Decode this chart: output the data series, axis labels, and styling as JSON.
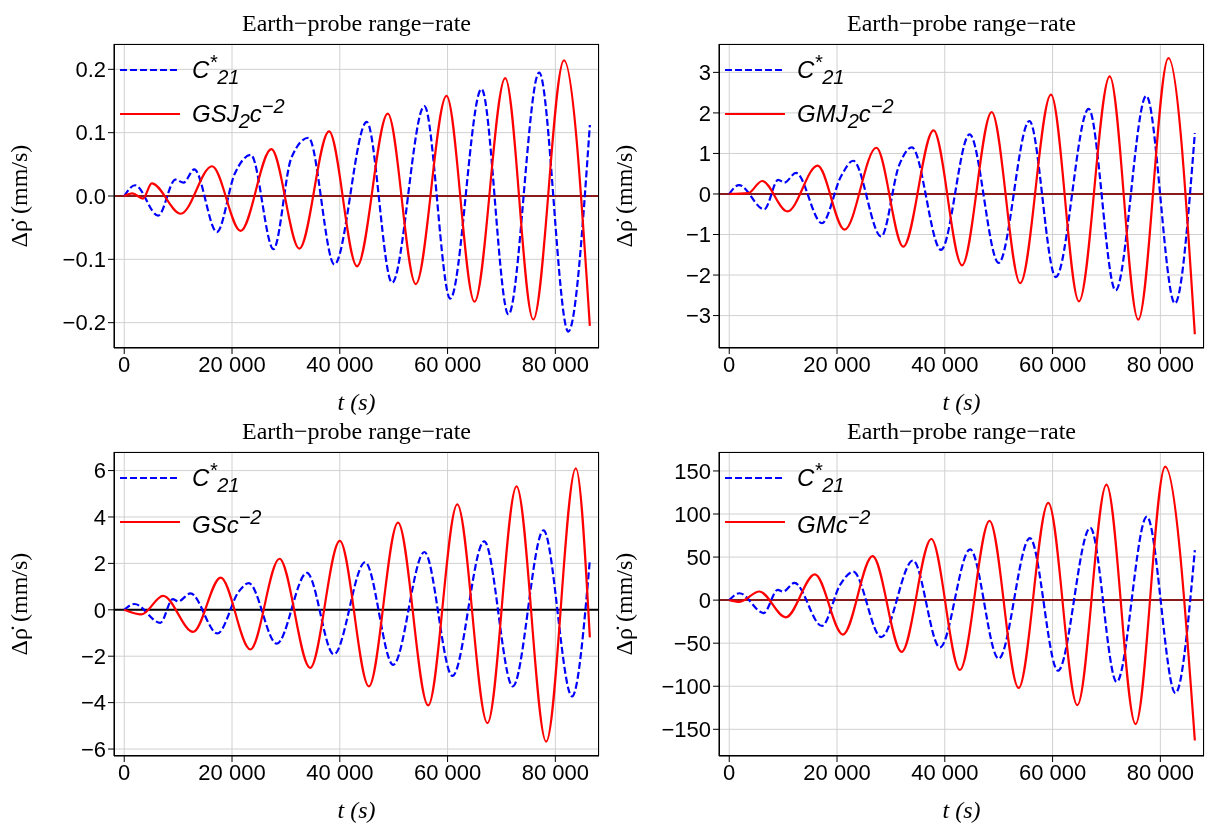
{
  "chart_data": [
    {
      "type": "line",
      "title": "Earth−probe range−rate",
      "xlabel": "t (s)",
      "ylabel": "Δρ̇ (mm/s)",
      "legend": "top left",
      "grid": true,
      "xlim": [
        -1900,
        88100
      ],
      "xticks": [
        {
          "value": 0,
          "label": "0"
        },
        {
          "value": 20000,
          "label": "20 000"
        },
        {
          "value": 40000,
          "label": "40 000"
        },
        {
          "value": 60000,
          "label": "60 000"
        },
        {
          "value": 80000,
          "label": "80 000"
        }
      ],
      "ylim": [
        -0.24,
        0.24
      ],
      "yticks": [
        {
          "value": -0.2,
          "label": "−0.2"
        },
        {
          "value": -0.1,
          "label": "−0.1"
        },
        {
          "value": 0,
          "label": "0.0"
        },
        {
          "value": 0.1,
          "label": "0.1"
        },
        {
          "value": 0.2,
          "label": "0.2"
        }
      ],
      "ref_lines": [
        {
          "axis": "y",
          "value": 0,
          "color": "#8b1a1a"
        }
      ],
      "series": [
        {
          "name": "C$^{*}$$_{21}$",
          "color": "#0000ff",
          "line_style": "dashed",
          "x": [
            0,
            2000,
            6300,
            9500,
            11000,
            13000,
            17200,
            20500,
            23500,
            27700,
            31000,
            34200,
            39000,
            45000,
            49700,
            55700,
            60500,
            66300,
            71300,
            77000,
            82400,
            86400
          ],
          "values": [
            0,
            0.017,
            -0.031,
            0.026,
            0.021,
            0.042,
            -0.057,
            0.035,
            0.065,
            -0.084,
            0.06,
            0.092,
            -0.108,
            0.117,
            -0.137,
            0.142,
            -0.162,
            0.169,
            -0.187,
            0.195,
            -0.214,
            0.112
          ]
        },
        {
          "name": "GSJ$_{2}$c$^{−2}$",
          "color": "#ff0000",
          "line_style": "solid",
          "x": [
            0,
            1500,
            3500,
            5100,
            10500,
            16300,
            21600,
            27300,
            32500,
            38000,
            43200,
            48900,
            54100,
            59800,
            65000,
            70700,
            75900,
            81600,
            86400
          ],
          "values": [
            0,
            0.004,
            -0.004,
            0.02,
            -0.028,
            0.047,
            -0.055,
            0.074,
            -0.083,
            0.102,
            -0.111,
            0.13,
            -0.139,
            0.158,
            -0.167,
            0.186,
            -0.195,
            0.214,
            -0.205
          ]
        }
      ]
    },
    {
      "type": "line",
      "title": "Earth−probe range−rate",
      "xlabel": "t (s)",
      "ylabel": "Δρ̇ (mm/s)",
      "legend": "top left",
      "grid": true,
      "xlim": [
        -1900,
        88100
      ],
      "xticks": [
        {
          "value": 0,
          "label": "0"
        },
        {
          "value": 20000,
          "label": "20 000"
        },
        {
          "value": 40000,
          "label": "40 000"
        },
        {
          "value": 60000,
          "label": "60 000"
        },
        {
          "value": 80000,
          "label": "80 000"
        }
      ],
      "ylim": [
        -3.8,
        3.7
      ],
      "yticks": [
        {
          "value": -3,
          "label": "−3"
        },
        {
          "value": -2,
          "label": "−2"
        },
        {
          "value": -1,
          "label": "−1"
        },
        {
          "value": 0,
          "label": "0"
        },
        {
          "value": 1,
          "label": "1"
        },
        {
          "value": 2,
          "label": "2"
        },
        {
          "value": 3,
          "label": "3"
        }
      ],
      "ref_lines": [
        {
          "axis": "y",
          "value": 0,
          "color": "#8b1a1a"
        }
      ],
      "series": [
        {
          "name": "C$^{*}$$_{21}$",
          "color": "#0000ff",
          "line_style": "dashed",
          "x": [
            0,
            1800,
            6500,
            9100,
            10200,
            12400,
            17200,
            20800,
            23000,
            28200,
            31500,
            33900,
            39300,
            44600,
            50000,
            55700,
            60600,
            66700,
            71700,
            77400,
            82700,
            86400
          ],
          "values": [
            0,
            0.22,
            -0.38,
            0.35,
            0.28,
            0.52,
            -0.72,
            0.45,
            0.82,
            -1.05,
            0.7,
            1.15,
            -1.38,
            1.47,
            -1.7,
            1.8,
            -2.05,
            2.1,
            -2.38,
            2.42,
            -2.7,
            1.5
          ]
        },
        {
          "name": "GMJ$_{2}$c$^{−2}$",
          "color": "#ff0000",
          "line_style": "solid",
          "x": [
            0,
            3500,
            6100,
            10800,
            16400,
            21400,
            27300,
            32300,
            37900,
            43200,
            48700,
            54000,
            59700,
            64900,
            70600,
            75900,
            81500,
            86400
          ],
          "values": [
            0,
            0.02,
            0.32,
            -0.43,
            0.7,
            -0.88,
            1.14,
            -1.3,
            1.57,
            -1.76,
            2.02,
            -2.2,
            2.45,
            -2.65,
            2.9,
            -3.1,
            3.35,
            -3.46
          ]
        }
      ]
    },
    {
      "type": "line",
      "title": "Earth−probe range−rate",
      "xlabel": "t (s)",
      "ylabel": "Δρ̇ (mm/s)",
      "legend": "top left",
      "grid": true,
      "xlim": [
        -1900,
        88100
      ],
      "xticks": [
        {
          "value": 0,
          "label": "0"
        },
        {
          "value": 20000,
          "label": "20 000"
        },
        {
          "value": 40000,
          "label": "40 000"
        },
        {
          "value": 60000,
          "label": "60 000"
        },
        {
          "value": 80000,
          "label": "80 000"
        }
      ],
      "ylim": [
        -6.3,
        6.8
      ],
      "yticks": [
        {
          "value": -6,
          "label": "−6"
        },
        {
          "value": -4,
          "label": "−4"
        },
        {
          "value": -2,
          "label": "−2"
        },
        {
          "value": 0,
          "label": "0"
        },
        {
          "value": 2,
          "label": "2"
        },
        {
          "value": 4,
          "label": "4"
        },
        {
          "value": 6,
          "label": "6"
        }
      ],
      "ref_lines": [
        {
          "axis": "y",
          "value": 0,
          "color": "#000000"
        }
      ],
      "series": [
        {
          "name": "C$^{*}$$_{21}$",
          "color": "#0000ff",
          "line_style": "dashed",
          "x": [
            0,
            1900,
            6700,
            9000,
            10000,
            12300,
            17300,
            21300,
            23100,
            28300,
            33900,
            38900,
            44700,
            49900,
            55700,
            60900,
            66800,
            72100,
            77800,
            83100,
            86400
          ],
          "values": [
            0,
            0.25,
            -0.56,
            0.46,
            0.36,
            0.71,
            -1.02,
            0.8,
            1.15,
            -1.46,
            1.59,
            -1.92,
            2.05,
            -2.37,
            2.49,
            -2.85,
            2.95,
            -3.3,
            3.42,
            -3.73,
            2.14
          ]
        },
        {
          "name": "GSc$^{−2}$",
          "color": "#ff0000",
          "line_style": "solid",
          "x": [
            0,
            3200,
            7200,
            12800,
            17900,
            23400,
            28800,
            34500,
            40000,
            45400,
            50800,
            56400,
            61800,
            67400,
            72800,
            78300,
            83800,
            86400
          ],
          "values": [
            0,
            -0.2,
            0.6,
            -0.95,
            1.39,
            -1.71,
            2.2,
            -2.5,
            2.97,
            -3.3,
            3.76,
            -4.12,
            4.54,
            -4.88,
            5.32,
            -5.68,
            6.1,
            -1.19
          ]
        }
      ]
    },
    {
      "type": "line",
      "title": "Earth−probe range−rate",
      "xlabel": "t (s)",
      "ylabel": "Δρ̇ (mm/s)",
      "legend": "top left",
      "grid": true,
      "xlim": [
        -1900,
        88100
      ],
      "xticks": [
        {
          "value": 0,
          "label": "0"
        },
        {
          "value": 20000,
          "label": "20 000"
        },
        {
          "value": 40000,
          "label": "40 000"
        },
        {
          "value": 60000,
          "label": "60 000"
        },
        {
          "value": 80000,
          "label": "80 000"
        }
      ],
      "ylim": [
        -181,
        172
      ],
      "yticks": [
        {
          "value": -150,
          "label": "−150"
        },
        {
          "value": -100,
          "label": "−100"
        },
        {
          "value": -50,
          "label": "−50"
        },
        {
          "value": 0,
          "label": "0"
        },
        {
          "value": 50,
          "label": "50"
        },
        {
          "value": 100,
          "label": "100"
        },
        {
          "value": 150,
          "label": "150"
        }
      ],
      "ref_lines": [
        {
          "axis": "y",
          "value": 0,
          "color": "#8b1a1a"
        }
      ],
      "series": [
        {
          "name": "C$^{*}$$_{21}$",
          "color": "#0000ff",
          "line_style": "dashed",
          "x": [
            0,
            1900,
            6400,
            9000,
            10000,
            12100,
            17200,
            20600,
            23000,
            28200,
            34100,
            39100,
            44700,
            50000,
            55800,
            61000,
            67000,
            71900,
            77500,
            82800,
            86400
          ],
          "values": [
            0,
            8,
            -15,
            12,
            10,
            20,
            -30,
            18,
            33,
            -43,
            46,
            -55,
            59,
            -68,
            72,
            -82,
            84,
            -95,
            97,
            -108,
            58
          ]
        },
        {
          "name": "GMc$^{−2}$",
          "color": "#ff0000",
          "line_style": "solid",
          "x": [
            0,
            1900,
            5600,
            10500,
            15900,
            21100,
            26600,
            32000,
            37500,
            42800,
            48300,
            53700,
            59200,
            64600,
            70000,
            75400,
            80900,
            86400
          ],
          "values": [
            0,
            -2,
            10,
            -20,
            30,
            -40,
            51,
            -60,
            71,
            -81,
            92,
            -102,
            113,
            -122,
            134,
            -144,
            155,
            -163
          ]
        }
      ]
    }
  ]
}
